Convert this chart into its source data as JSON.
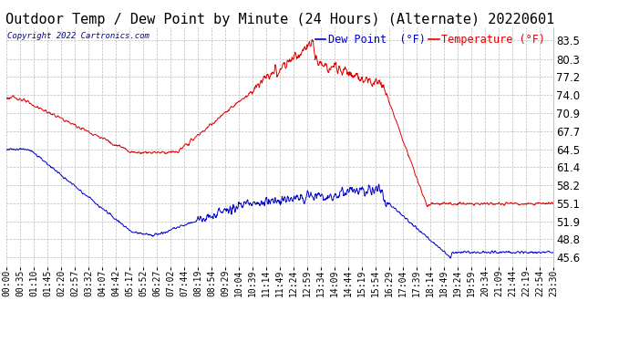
{
  "title": "Outdoor Temp / Dew Point by Minute (24 Hours) (Alternate) 20220601",
  "copyright": "Copyright 2022 Cartronics.com",
  "legend_blue": "Dew Point  (°F)",
  "legend_red": "Temperature (°F)",
  "ylim": [
    44.0,
    85.8
  ],
  "yticks": [
    83.5,
    80.3,
    77.2,
    74.0,
    70.9,
    67.7,
    64.5,
    61.4,
    58.2,
    55.1,
    51.9,
    48.8,
    45.6
  ],
  "xtick_labels": [
    "00:00",
    "00:35",
    "01:10",
    "01:45",
    "02:20",
    "02:57",
    "03:32",
    "04:07",
    "04:42",
    "05:17",
    "05:52",
    "06:27",
    "07:02",
    "07:44",
    "08:19",
    "08:54",
    "09:29",
    "10:04",
    "10:39",
    "11:14",
    "11:49",
    "12:24",
    "12:59",
    "13:34",
    "14:09",
    "14:44",
    "15:19",
    "15:54",
    "16:29",
    "17:04",
    "17:39",
    "18:14",
    "18:49",
    "19:24",
    "19:59",
    "20:34",
    "21:09",
    "21:44",
    "22:19",
    "22:54",
    "23:30"
  ],
  "bg_color": "#ffffff",
  "grid_color": "#bbbbbb",
  "temp_color": "#dd0000",
  "dew_color": "#0000cc",
  "title_fontsize": 11,
  "tick_fontsize": 7,
  "legend_fontsize": 8.5
}
